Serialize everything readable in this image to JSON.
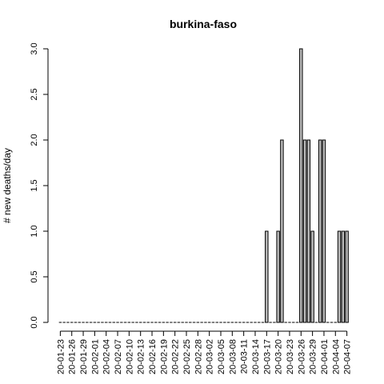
{
  "chart_data": {
    "type": "bar",
    "title": "burkina-faso",
    "xlabel": "",
    "ylabel": "# new deaths/day",
    "ylim": [
      0,
      3
    ],
    "yticks": [
      "0.0",
      "0.5",
      "1.0",
      "1.5",
      "2.0",
      "2.5",
      "3.0"
    ],
    "grid": false,
    "legend": "none",
    "bar_fill": "#bebebe",
    "bar_stroke": "#000000",
    "categories": [
      "20-01-23",
      "20-01-24",
      "20-01-25",
      "20-01-26",
      "20-01-27",
      "20-01-28",
      "20-01-29",
      "20-01-30",
      "20-01-31",
      "20-02-01",
      "20-02-02",
      "20-02-03",
      "20-02-04",
      "20-02-05",
      "20-02-06",
      "20-02-07",
      "20-02-08",
      "20-02-09",
      "20-02-10",
      "20-02-11",
      "20-02-12",
      "20-02-13",
      "20-02-14",
      "20-02-15",
      "20-02-16",
      "20-02-17",
      "20-02-18",
      "20-02-19",
      "20-02-20",
      "20-02-21",
      "20-02-22",
      "20-02-23",
      "20-02-24",
      "20-02-25",
      "20-02-26",
      "20-02-27",
      "20-02-28",
      "20-02-29",
      "20-03-01",
      "20-03-02",
      "20-03-03",
      "20-03-04",
      "20-03-05",
      "20-03-06",
      "20-03-07",
      "20-03-08",
      "20-03-09",
      "20-03-10",
      "20-03-11",
      "20-03-12",
      "20-03-13",
      "20-03-14",
      "20-03-15",
      "20-03-16",
      "20-03-17",
      "20-03-18",
      "20-03-19",
      "20-03-20",
      "20-03-21",
      "20-03-22",
      "20-03-23",
      "20-03-24",
      "20-03-25",
      "20-03-26",
      "20-03-27",
      "20-03-28",
      "20-03-29",
      "20-03-30",
      "20-03-31",
      "20-04-01",
      "20-04-02",
      "20-04-03",
      "20-04-04",
      "20-04-05",
      "20-04-06",
      "20-04-07"
    ],
    "values": [
      0,
      0,
      0,
      0,
      0,
      0,
      0,
      0,
      0,
      0,
      0,
      0,
      0,
      0,
      0,
      0,
      0,
      0,
      0,
      0,
      0,
      0,
      0,
      0,
      0,
      0,
      0,
      0,
      0,
      0,
      0,
      0,
      0,
      0,
      0,
      0,
      0,
      0,
      0,
      0,
      0,
      0,
      0,
      0,
      0,
      0,
      0,
      0,
      0,
      0,
      0,
      0,
      0,
      0,
      1,
      0,
      0,
      1,
      2,
      0,
      0,
      0,
      0,
      3,
      2,
      2,
      1,
      0,
      2,
      2,
      0,
      0,
      0,
      1,
      1,
      1
    ],
    "xtick_labels": [
      "20-01-23",
      "20-01-26",
      "20-01-29",
      "20-02-01",
      "20-02-04",
      "20-02-07",
      "20-02-10",
      "20-02-13",
      "20-02-16",
      "20-02-19",
      "20-02-22",
      "20-02-25",
      "20-02-28",
      "20-03-02",
      "20-03-05",
      "20-03-08",
      "20-03-11",
      "20-03-14",
      "20-03-17",
      "20-03-20",
      "20-03-23",
      "20-03-26",
      "20-03-29",
      "20-04-01",
      "20-04-04",
      "20-04-07"
    ]
  }
}
